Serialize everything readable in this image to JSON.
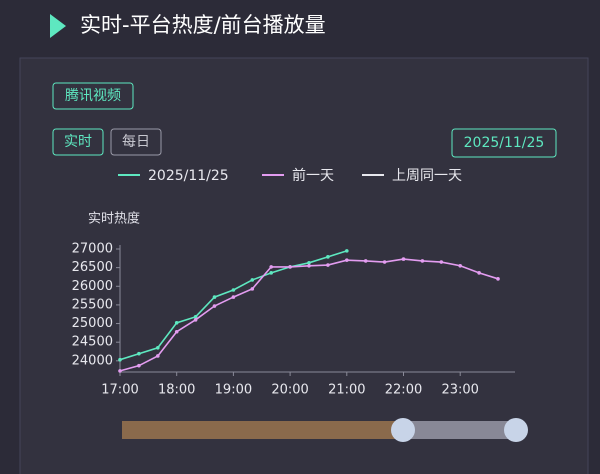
{
  "header": {
    "title": "实时-平台热度/前台播放量"
  },
  "source_tag": "腾讯视频",
  "tabs": [
    "实时",
    "每日"
  ],
  "date": "2025/11/25",
  "chart_data": {
    "type": "line",
    "y_label": "实时热度",
    "categories": [
      "17:00",
      null,
      null,
      "18:00",
      null,
      null,
      "19:00",
      null,
      null,
      "20:00",
      null,
      null,
      "21:00",
      null,
      null,
      "22:00",
      null,
      null,
      "23:00",
      null,
      null
    ],
    "series": [
      {
        "name": "2025/11/25",
        "color": "#5ee8c0",
        "values": [
          24030,
          24190,
          24350,
          25020,
          25180,
          25710,
          25900,
          26170,
          26360,
          26520,
          26630,
          26790,
          26950,
          null,
          null,
          null,
          null,
          null,
          null,
          null,
          null
        ]
      },
      {
        "name": "前一天",
        "color": "#e39cf0",
        "values": [
          23730,
          23870,
          24130,
          24780,
          25100,
          25470,
          25710,
          25930,
          26520,
          26520,
          26550,
          26570,
          26700,
          26680,
          26650,
          26730,
          26680,
          26650,
          26550,
          26360,
          26200
        ]
      },
      {
        "name": "上周同一天",
        "color": "#e8e8ee",
        "values": [
          null,
          null,
          null,
          null,
          null,
          null,
          null,
          null,
          null,
          null,
          null,
          null,
          null,
          null,
          null,
          null,
          null,
          null,
          null,
          null,
          null
        ]
      }
    ],
    "ylim": [
      23700,
      27000
    ],
    "yticks": [
      24000,
      24500,
      25000,
      25500,
      26000,
      26500,
      27000
    ]
  }
}
